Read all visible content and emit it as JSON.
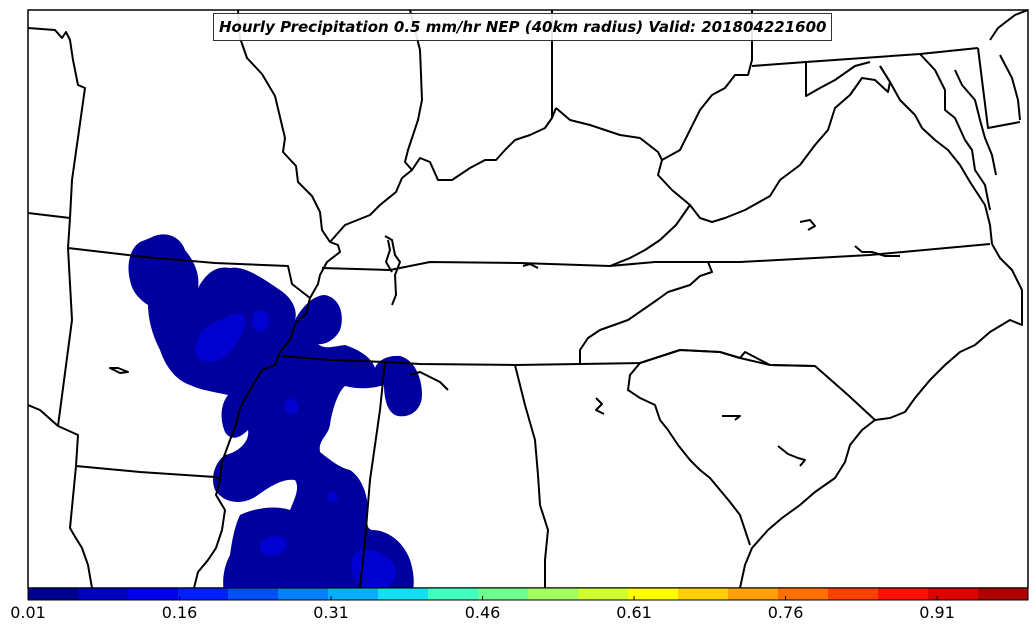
{
  "title": "Hourly Precipitation 0.5 mm/hr NEP (40km radius) Valid: 201804221600",
  "colorbar": {
    "min": 0.01,
    "max": 1.0,
    "tick_labels": [
      "0.01",
      "0.16",
      "0.31",
      "0.46",
      "0.61",
      "0.76",
      "0.91"
    ],
    "tick_values": [
      0.01,
      0.16,
      0.31,
      0.46,
      0.61,
      0.76,
      0.91
    ],
    "colors": [
      "#00008f",
      "#0000bf",
      "#0000ef",
      "#0020ff",
      "#0050ff",
      "#0080ff",
      "#00b0ff",
      "#10e0ef",
      "#40ffbf",
      "#70ff8f",
      "#a0ff5f",
      "#d0ff2f",
      "#ffff00",
      "#ffcf00",
      "#ff9f00",
      "#ff7000",
      "#ff4000",
      "#ff1000",
      "#df0000",
      "#af0000"
    ]
  },
  "colors": {
    "precip_base": "#00009f",
    "precip_light": "#0000d0",
    "borders": "#000000",
    "background": "#ffffff"
  }
}
